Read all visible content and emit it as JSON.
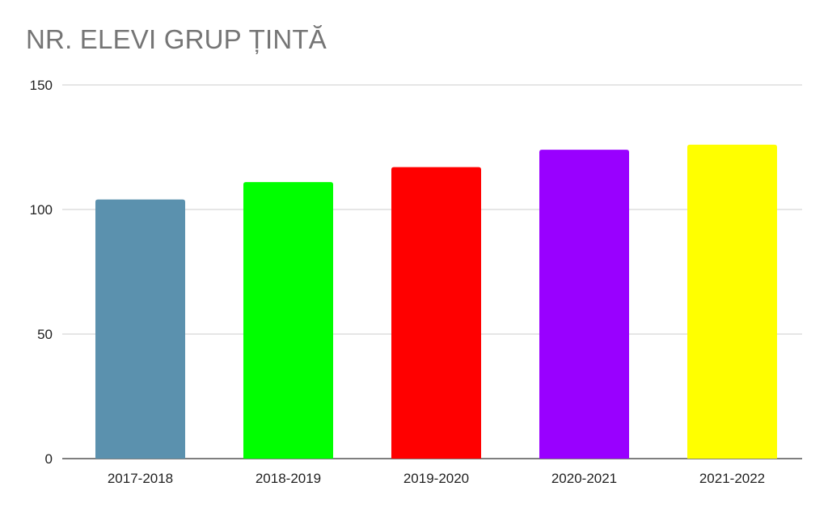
{
  "chart_data": {
    "type": "bar",
    "title": "NR. ELEVI GRUP ȚINTĂ",
    "categories": [
      "2017-2018",
      "2018-2019",
      "2019-2020",
      "2020-2021",
      "2021-2022"
    ],
    "values": [
      104,
      111,
      117,
      124,
      126
    ],
    "bar_colors": [
      "#5b91ae",
      "#00ff00",
      "#ff0000",
      "#9900ff",
      "#ffff00"
    ],
    "ylim": [
      0,
      150
    ],
    "yticks": [
      "0",
      "50",
      "100",
      "150"
    ],
    "xlabel": "",
    "ylabel": "",
    "grid": true,
    "legend": "none"
  }
}
